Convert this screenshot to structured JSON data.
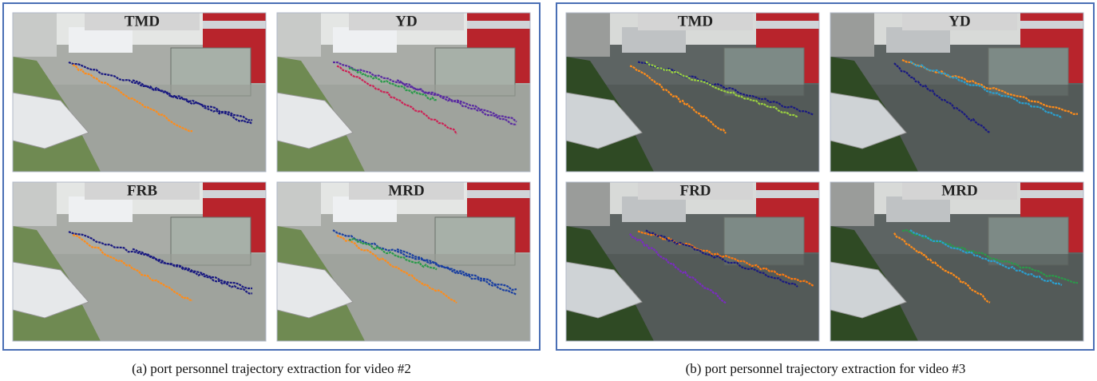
{
  "panels": [
    {
      "caption": "(a) port personnel trajectory extraction for video #2",
      "images": [
        {
          "label": "TMD"
        },
        {
          "label": "YD"
        },
        {
          "label": "FRB"
        },
        {
          "label": "MRD"
        }
      ]
    },
    {
      "caption": "(b) port personnel trajectory extraction for video #3",
      "images": [
        {
          "label": "TMD"
        },
        {
          "label": "YD"
        },
        {
          "label": "FRD"
        },
        {
          "label": "MRD"
        }
      ]
    }
  ]
}
